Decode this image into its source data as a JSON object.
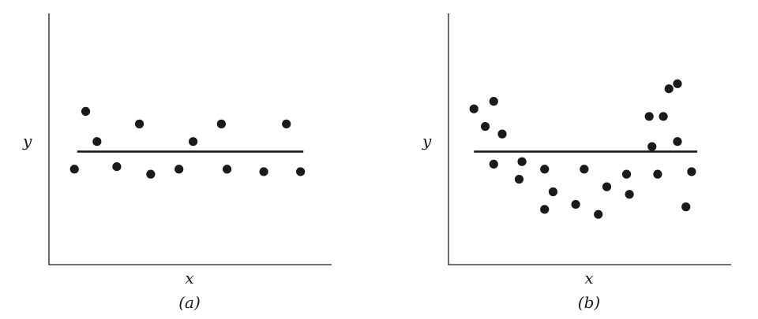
{
  "chart_data": [
    {
      "type": "scatter",
      "caption": "(a)",
      "xlabel": "x",
      "ylabel": "y",
      "xlim": [
        0,
        10
      ],
      "ylim": [
        0,
        10
      ],
      "grid": false,
      "fitted_line": {
        "x": [
          1,
          9
        ],
        "y": [
          4.5,
          4.5
        ]
      },
      "series": [
        {
          "x": [
            0.9,
            1.3,
            1.7,
            2.4,
            3.2,
            3.6,
            4.6,
            5.1,
            6.1,
            6.3,
            7.6,
            8.4,
            8.9
          ],
          "y": [
            3.8,
            6.1,
            4.9,
            3.9,
            5.6,
            3.6,
            3.8,
            4.9,
            5.6,
            3.8,
            3.7,
            5.6,
            3.7
          ]
        }
      ]
    },
    {
      "type": "scatter",
      "caption": "(b)",
      "xlabel": "x",
      "ylabel": "y",
      "xlim": [
        0,
        10
      ],
      "ylim": [
        0,
        10
      ],
      "grid": false,
      "fitted_line": {
        "x": [
          0.9,
          8.8
        ],
        "y": [
          4.5,
          4.5
        ]
      },
      "series": [
        {
          "x": [
            0.9,
            1.3,
            1.6,
            1.6,
            1.9,
            2.5,
            2.6,
            3.4,
            3.4,
            3.7,
            4.5,
            4.8,
            5.3,
            5.6,
            6.3,
            6.4,
            7.1,
            7.2,
            7.4,
            7.6,
            7.8,
            8.1,
            8.1,
            8.4,
            8.6
          ],
          "y": [
            6.2,
            5.5,
            6.5,
            4.0,
            5.2,
            3.4,
            4.1,
            2.2,
            3.8,
            2.9,
            2.4,
            3.8,
            2.0,
            3.1,
            3.6,
            2.8,
            5.9,
            4.7,
            3.6,
            5.9,
            7.0,
            7.2,
            4.9,
            2.3,
            3.7
          ]
        }
      ]
    }
  ]
}
